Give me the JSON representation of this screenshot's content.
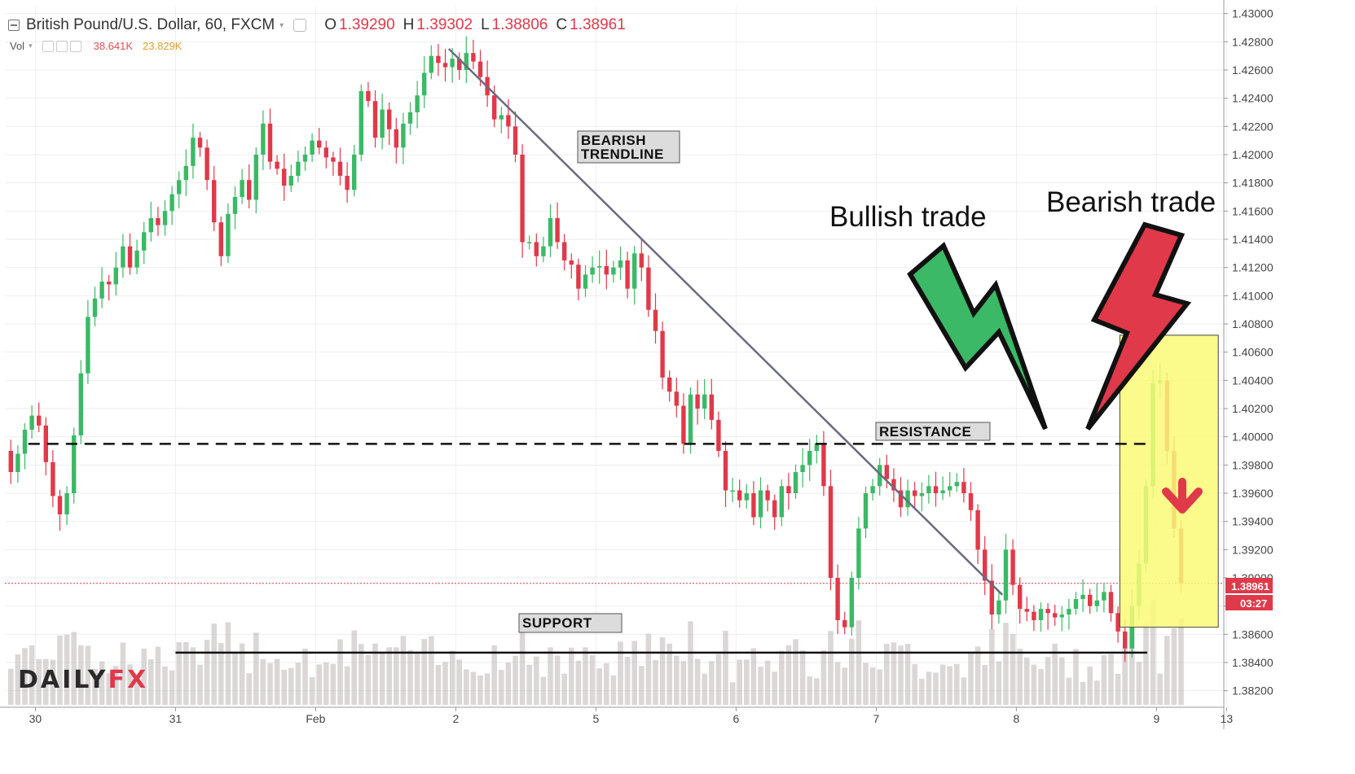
{
  "header": {
    "symbol": "British Pound/U.S. Dollar, 60, FXCM",
    "open_label": "O",
    "open": "1.39290",
    "high_label": "H",
    "high": "1.39302",
    "low_label": "L",
    "low": "1.38806",
    "close_label": "C",
    "close": "1.38961"
  },
  "volume": {
    "label": "Vol",
    "value1": "38.641K",
    "value2": "23.829K"
  },
  "logo": {
    "part1": "DAILY",
    "part2": "FX"
  },
  "colors": {
    "bull": "#3bb966",
    "bear": "#e0394a",
    "highlight": "#fafa78",
    "trendline": "#6b6b80"
  },
  "chart_data": {
    "type": "candlestick",
    "title": "British Pound/U.S. Dollar, 60, FXCM",
    "ylim": [
      1.381,
      1.4305
    ],
    "y_ticks": [
      "1.43000",
      "1.42800",
      "1.42600",
      "1.42400",
      "1.42200",
      "1.42000",
      "1.41800",
      "1.41600",
      "1.41400",
      "1.41200",
      "1.41000",
      "1.40800",
      "1.40600",
      "1.40400",
      "1.40200",
      "1.40000",
      "1.39800",
      "1.39600",
      "1.39400",
      "1.39200",
      "1.39000",
      "1.38800",
      "1.38600",
      "1.38400",
      "1.38200"
    ],
    "x_labels": [
      {
        "label": "30",
        "bar": 4
      },
      {
        "label": "31",
        "bar": 24
      },
      {
        "label": "Feb",
        "bar": 44
      },
      {
        "label": "2",
        "bar": 64
      },
      {
        "label": "5",
        "bar": 84
      },
      {
        "label": "6",
        "bar": 104
      },
      {
        "label": "7",
        "bar": 124
      },
      {
        "label": "8",
        "bar": 144
      },
      {
        "label": "9",
        "bar": 164
      },
      {
        "label": "13",
        "bar": 174
      }
    ],
    "closes": [
      1.3975,
      1.3988,
      1.4005,
      1.4015,
      1.4008,
      1.3982,
      1.3958,
      1.3945,
      1.396,
      1.4001,
      1.4045,
      1.4085,
      1.4098,
      1.411,
      1.4108,
      1.412,
      1.4135,
      1.412,
      1.4132,
      1.4145,
      1.4155,
      1.415,
      1.416,
      1.4172,
      1.4182,
      1.4192,
      1.4212,
      1.4205,
      1.4182,
      1.4152,
      1.4128,
      1.4158,
      1.417,
      1.4182,
      1.4168,
      1.42,
      1.4222,
      1.4195,
      1.419,
      1.4178,
      1.4185,
      1.4195,
      1.42,
      1.421,
      1.4205,
      1.4198,
      1.4195,
      1.4185,
      1.4175,
      1.42,
      1.4245,
      1.4238,
      1.4212,
      1.4232,
      1.4218,
      1.4205,
      1.4222,
      1.423,
      1.4242,
      1.4258,
      1.427,
      1.4265,
      1.4262,
      1.4268,
      1.426,
      1.4272,
      1.4266,
      1.4255,
      1.4242,
      1.4225,
      1.4228,
      1.422,
      1.42,
      1.4138,
      1.4138,
      1.4128,
      1.4135,
      1.4155,
      1.4138,
      1.4125,
      1.4122,
      1.4105,
      1.4115,
      1.412,
      1.4121,
      1.4115,
      1.412,
      1.4125,
      1.4105,
      1.413,
      1.412,
      1.409,
      1.4075,
      1.4042,
      1.4032,
      1.4022,
      1.3995,
      1.403,
      1.402,
      1.403,
      1.4012,
      1.399,
      1.3962,
      1.3962,
      1.3955,
      1.396,
      1.3943,
      1.3962,
      1.3955,
      1.3943,
      1.3965,
      1.396,
      1.3975,
      1.398,
      1.399,
      1.3995,
      1.3965,
      1.39,
      1.387,
      1.3865,
      1.39,
      1.3935,
      1.396,
      1.3965,
      1.398,
      1.397,
      1.3962,
      1.395,
      1.3962,
      1.3958,
      1.396,
      1.3965,
      1.396,
      1.3962,
      1.3965,
      1.3968,
      1.396,
      1.3948,
      1.392,
      1.3898,
      1.3874,
      1.3884,
      1.392,
      1.3895,
      1.3878,
      1.3876,
      1.387,
      1.3878,
      1.3875,
      1.3872,
      1.3874,
      1.3878,
      1.3885,
      1.3888,
      1.388,
      1.3884,
      1.389,
      1.3875,
      1.3862,
      1.385,
      1.388,
      1.391,
      1.3965,
      1.4038,
      1.404,
      1.399,
      1.3935,
      1.3896
    ]
  },
  "annotations": {
    "bearish_trendline": "BEARISH TRENDLINE",
    "bearish_trendline_line1": "BEARISH",
    "bearish_trendline_line2": "TRENDLINE",
    "resistance": "RESISTANCE",
    "support": "SUPPORT",
    "bullish_trade": "Bullish trade",
    "bearish_trade": "Bearish trade",
    "resistance_level": 1.3995,
    "support_level": 1.3847,
    "current_price": "1.38961",
    "countdown": "03:27"
  }
}
